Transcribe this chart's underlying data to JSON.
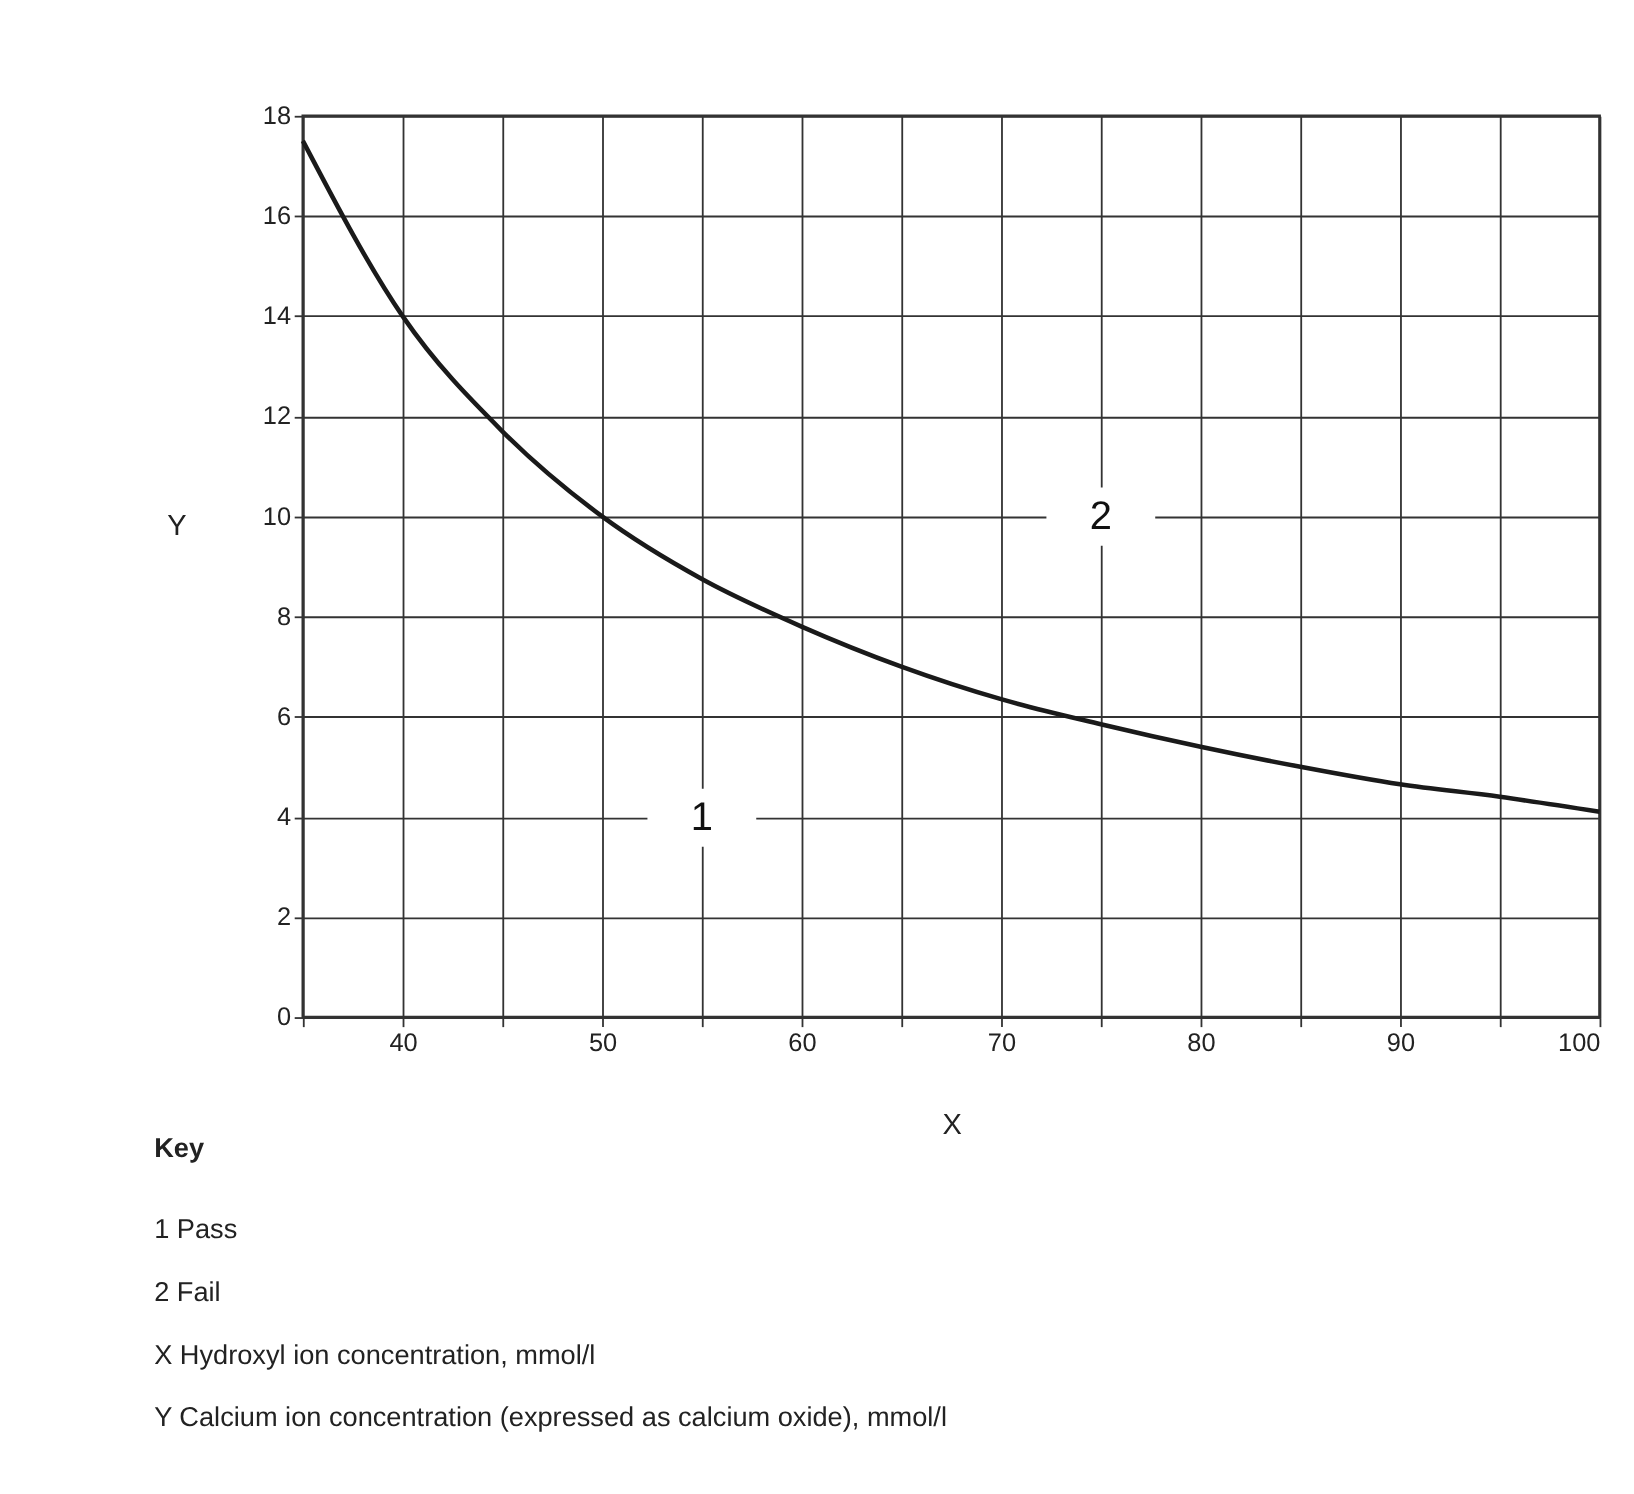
{
  "chart_data": {
    "type": "line",
    "xlabel": "X",
    "ylabel": "Y",
    "x": [
      35,
      40,
      45,
      50,
      55,
      60,
      65,
      70,
      75,
      80,
      85,
      90,
      95,
      100
    ],
    "series": [
      {
        "color": "#1a1a1a",
        "values": [
          17.5,
          14,
          11.7,
          10,
          8.75,
          7.8,
          7.0,
          6.35,
          5.85,
          5.4,
          5.0,
          4.65,
          4.4,
          4.1
        ]
      }
    ],
    "xlim": [
      35,
      100
    ],
    "ylim": [
      0,
      18
    ],
    "xticks": [
      {
        "value": 35,
        "label": null
      },
      40,
      {
        "value": 45,
        "label": null
      },
      50,
      {
        "value": 55,
        "label": null
      },
      60,
      {
        "value": 65,
        "label": null
      },
      70,
      {
        "value": 75,
        "label": null
      },
      80,
      {
        "value": 85,
        "label": null
      },
      90,
      {
        "value": 95,
        "label": null
      },
      100
    ],
    "yticks": [
      0,
      2,
      4,
      6,
      8,
      10,
      12,
      14,
      16,
      18
    ],
    "grid": true,
    "legend": false,
    "marker": "none",
    "line_style": "solid",
    "annotations": [
      "1",
      "2",
      "Key",
      "1     Pass",
      "2     Fail",
      "X     Hydroxyl ion concentration, mmol/l",
      "Y     Calcium ion concentration (expressed as calcium oxide), mmol/l"
    ]
  }
}
